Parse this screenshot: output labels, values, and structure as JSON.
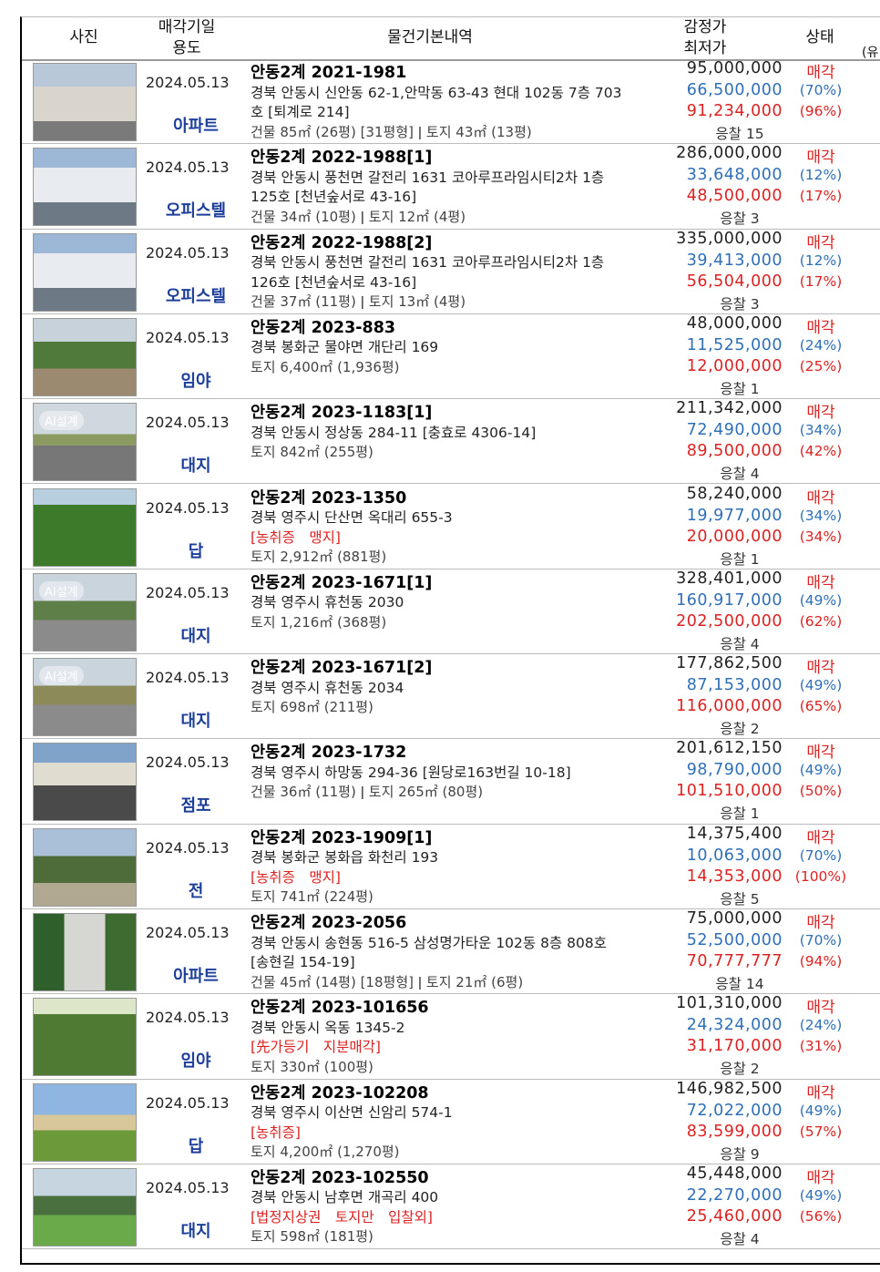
{
  "header": {
    "photo": "사진",
    "date": "매각기일",
    "use": "용도",
    "details": "물건기본내역",
    "appraisal": "감정가",
    "minimum": "최저가",
    "status": "상태",
    "extra": "(유"
  },
  "rows": [
    {
      "date": "2024.05.13",
      "use": "아파트",
      "case": "안동2계 2021-1981",
      "address": "경북 안동시 신안동 62-1,안막동 63-43 현대 102동 7층 703호 [퇴계로 214]",
      "area": "건물 85㎡ (26평) [31평형]  ǀ  토지 43㎡ (13평)",
      "appraisal": "95,000,000",
      "minimum": "66,500,000",
      "minimum_pct": "(70%)",
      "sale": "91,234,000",
      "sale_pct": "(96%)",
      "bidders": "응찰 15",
      "status": "매각"
    },
    {
      "date": "2024.05.13",
      "use": "오피스텔",
      "case": "안동2계 2022-1988[1]",
      "address": "경북 안동시 풍천면 갈전리 1631 코아루프라임시티2차 1층 125호 [천년숲서로 43-16]",
      "area": "건물 34㎡ (10평)  ǀ  토지 12㎡ (4평)",
      "appraisal": "286,000,000",
      "minimum": "33,648,000",
      "minimum_pct": "(12%)",
      "sale": "48,500,000",
      "sale_pct": "(17%)",
      "bidders": "응찰 3",
      "status": "매각"
    },
    {
      "date": "2024.05.13",
      "use": "오피스텔",
      "case": "안동2계 2022-1988[2]",
      "address": "경북 안동시 풍천면 갈전리 1631 코아루프라임시티2차 1층 126호 [천년숲서로 43-16]",
      "area": "건물 37㎡ (11평)  ǀ  토지 13㎡ (4평)",
      "appraisal": "335,000,000",
      "minimum": "39,413,000",
      "minimum_pct": "(12%)",
      "sale": "56,504,000",
      "sale_pct": "(17%)",
      "bidders": "응찰 3",
      "status": "매각"
    },
    {
      "date": "2024.05.13",
      "use": "임야",
      "case": "안동2계 2023-883",
      "address": "경북 봉화군 물야면 개단리 169",
      "area": "토지 6,400㎡ (1,936평)",
      "appraisal": "48,000,000",
      "minimum": "11,525,000",
      "minimum_pct": "(24%)",
      "sale": "12,000,000",
      "sale_pct": "(25%)",
      "bidders": "응찰 1",
      "status": "매각"
    },
    {
      "date": "2024.05.13",
      "use": "대지",
      "badge": "AI설계",
      "case": "안동2계 2023-1183[1]",
      "address": "경북 안동시 정상동 284-11 [충효로 4306-14]",
      "area": "토지 842㎡ (255평)",
      "appraisal": "211,342,000",
      "minimum": "72,490,000",
      "minimum_pct": "(34%)",
      "sale": "89,500,000",
      "sale_pct": "(42%)",
      "bidders": "응찰 4",
      "status": "매각"
    },
    {
      "date": "2024.05.13",
      "use": "답",
      "case": "안동2계 2023-1350",
      "address": "경북 영주시 단산면 옥대리 655-3",
      "note": "[농취증　맹지]",
      "area": "토지 2,912㎡ (881평)",
      "appraisal": "58,240,000",
      "minimum": "19,977,000",
      "minimum_pct": "(34%)",
      "sale": "20,000,000",
      "sale_pct": "(34%)",
      "bidders": "응찰 1",
      "status": "매각"
    },
    {
      "date": "2024.05.13",
      "use": "대지",
      "badge": "AI설계",
      "case": "안동2계 2023-1671[1]",
      "address": "경북 영주시 휴천동 2030",
      "area": "토지 1,216㎡ (368평)",
      "appraisal": "328,401,000",
      "minimum": "160,917,000",
      "minimum_pct": "(49%)",
      "sale": "202,500,000",
      "sale_pct": "(62%)",
      "bidders": "응찰 4",
      "status": "매각"
    },
    {
      "date": "2024.05.13",
      "use": "대지",
      "badge": "AI설계",
      "case": "안동2계 2023-1671[2]",
      "address": "경북 영주시 휴천동 2034",
      "area": "토지 698㎡ (211평)",
      "appraisal": "177,862,500",
      "minimum": "87,153,000",
      "minimum_pct": "(49%)",
      "sale": "116,000,000",
      "sale_pct": "(65%)",
      "bidders": "응찰 2",
      "status": "매각"
    },
    {
      "date": "2024.05.13",
      "use": "점포",
      "case": "안동2계 2023-1732",
      "address": "경북 영주시 하망동 294-36 [원당로163번길 10-18]",
      "area": "건물 36㎡ (11평)  ǀ  토지 265㎡ (80평)",
      "appraisal": "201,612,150",
      "minimum": "98,790,000",
      "minimum_pct": "(49%)",
      "sale": "101,510,000",
      "sale_pct": "(50%)",
      "bidders": "응찰 1",
      "status": "매각"
    },
    {
      "date": "2024.05.13",
      "use": "전",
      "case": "안동2계 2023-1909[1]",
      "address": "경북 봉화군 봉화읍 화천리 193",
      "note": "[농취증　맹지]",
      "area": "토지 741㎡ (224평)",
      "appraisal": "14,375,400",
      "minimum": "10,063,000",
      "minimum_pct": "(70%)",
      "sale": "14,353,000",
      "sale_pct": "(100%)",
      "bidders": "응찰 5",
      "status": "매각"
    },
    {
      "date": "2024.05.13",
      "use": "아파트",
      "case": "안동2계 2023-2056",
      "address": "경북 안동시 송현동 516-5 삼성명가타운 102동 8층 808호 [송현길 154-19]",
      "area": "건물 45㎡ (14평) [18평형]  ǀ  토지 21㎡ (6평)",
      "appraisal": "75,000,000",
      "minimum": "52,500,000",
      "minimum_pct": "(70%)",
      "sale": "70,777,777",
      "sale_pct": "(94%)",
      "bidders": "응찰 14",
      "status": "매각"
    },
    {
      "date": "2024.05.13",
      "use": "임야",
      "case": "안동2계 2023-101656",
      "address": "경북 안동시 옥동 1345-2",
      "note": "[先가등기　지분매각]",
      "area": "토지 330㎡ (100평)",
      "appraisal": "101,310,000",
      "minimum": "24,324,000",
      "minimum_pct": "(24%)",
      "sale": "31,170,000",
      "sale_pct": "(31%)",
      "bidders": "응찰 2",
      "status": "매각"
    },
    {
      "date": "2024.05.13",
      "use": "답",
      "case": "안동2계 2023-102208",
      "address": "경북 영주시 이산면 신암리 574-1",
      "note": "[농취증]",
      "area": "토지 4,200㎡ (1,270평)",
      "appraisal": "146,982,500",
      "minimum": "72,022,000",
      "minimum_pct": "(49%)",
      "sale": "83,599,000",
      "sale_pct": "(57%)",
      "bidders": "응찰 9",
      "status": "매각"
    },
    {
      "date": "2024.05.13",
      "use": "대지",
      "case": "안동2계 2023-102550",
      "address": "경북 안동시 남후면 개곡리 400",
      "note": "[법정지상권　토지만　입찰외]",
      "area": "토지 598㎡ (181평)",
      "appraisal": "45,448,000",
      "minimum": "22,270,000",
      "minimum_pct": "(49%)",
      "sale": "25,460,000",
      "sale_pct": "(56%)",
      "bidders": "응찰 4",
      "status": "매각"
    }
  ]
}
